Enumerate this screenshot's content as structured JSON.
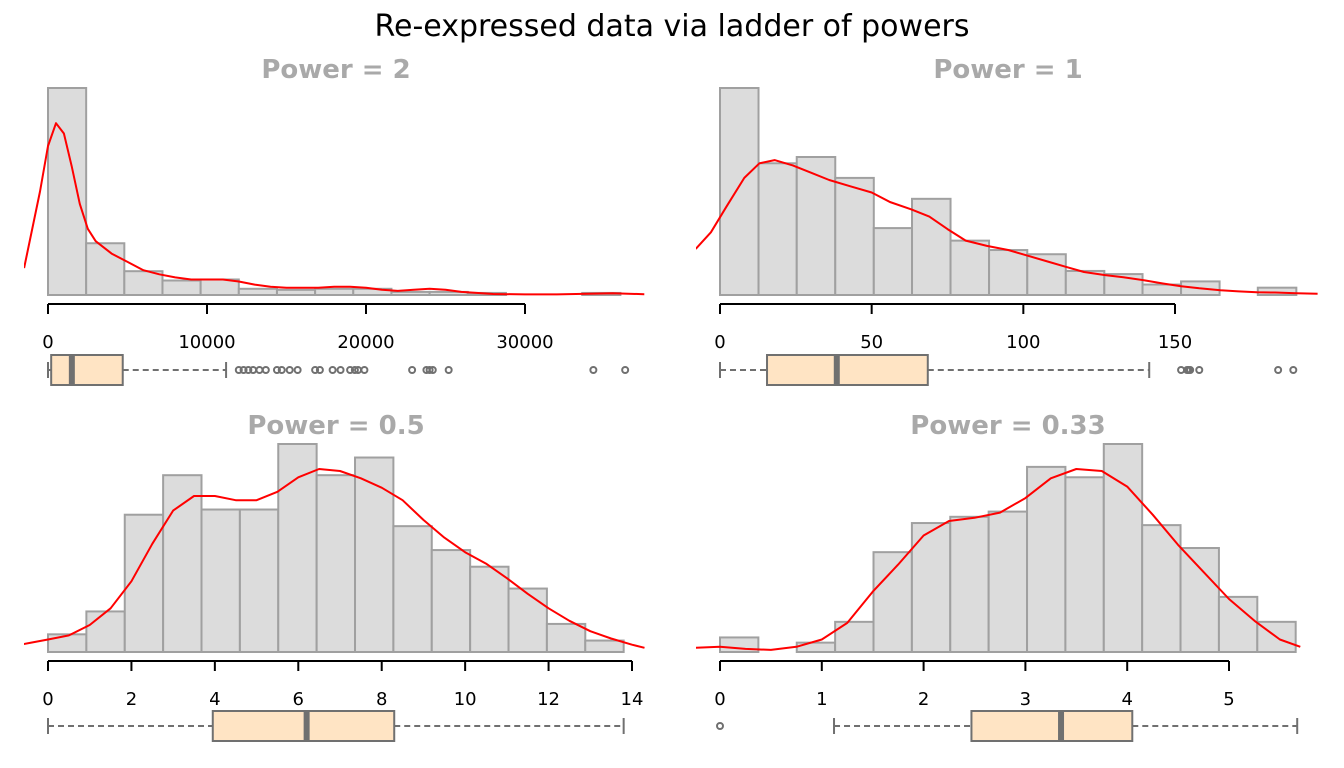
{
  "title": "Re-expressed data via ladder of powers",
  "colors": {
    "bar_fill": "#dcdcdc",
    "bar_stroke": "#a0a0a0",
    "density": "#ff0000",
    "box_fill": "#ffe4c4",
    "box_stroke": "#707070",
    "panel_title": "#a9a9a9",
    "axis": "#000000"
  },
  "chart_data": [
    {
      "type": "histogram",
      "title": "Power =  2",
      "power": 2,
      "xlim": [
        0,
        37000
      ],
      "xticks": [
        0,
        10000,
        20000,
        30000
      ],
      "xtick_labels": [
        "0",
        "10000",
        "20000",
        "30000"
      ],
      "bin_edges": [
        0,
        2400,
        4800,
        7200,
        9600,
        12000,
        14400,
        16800,
        19200,
        21600,
        24000,
        26400,
        28800,
        31200,
        33600,
        36000
      ],
      "heights": [
        100,
        25,
        11.5,
        7,
        7.5,
        3,
        2.5,
        3,
        3,
        1.5,
        1.5,
        1,
        0,
        0,
        1
      ],
      "density": [
        [
          -1500,
          13
        ],
        [
          -500,
          50
        ],
        [
          0,
          72
        ],
        [
          500,
          83
        ],
        [
          1000,
          78
        ],
        [
          1500,
          62
        ],
        [
          2000,
          44
        ],
        [
          2500,
          32
        ],
        [
          3000,
          26
        ],
        [
          4000,
          20
        ],
        [
          5000,
          16
        ],
        [
          6000,
          12
        ],
        [
          7000,
          10
        ],
        [
          8000,
          8.5
        ],
        [
          9000,
          7.5
        ],
        [
          10000,
          7.5
        ],
        [
          11000,
          7.5
        ],
        [
          12000,
          6.5
        ],
        [
          13000,
          5
        ],
        [
          14000,
          4
        ],
        [
          15000,
          3.5
        ],
        [
          16000,
          3.5
        ],
        [
          17000,
          3.5
        ],
        [
          18000,
          4
        ],
        [
          19000,
          4
        ],
        [
          20000,
          3.5
        ],
        [
          21000,
          2.5
        ],
        [
          22000,
          2
        ],
        [
          23000,
          2.5
        ],
        [
          24000,
          3
        ],
        [
          25000,
          2.5
        ],
        [
          26000,
          1.5
        ],
        [
          28000,
          0.5
        ],
        [
          30000,
          0.3
        ],
        [
          32000,
          0.3
        ],
        [
          34000,
          0.6
        ],
        [
          35500,
          0.8
        ],
        [
          37500,
          0.4
        ]
      ],
      "boxplot": {
        "min": 0,
        "q1": 200,
        "median": 1500,
        "q3": 4700,
        "whisker_high": 11200,
        "outliers": [
          12000,
          12300,
          12600,
          12900,
          13300,
          13700,
          14400,
          14700,
          15200,
          15700,
          16800,
          17100,
          17900,
          18400,
          19000,
          19300,
          19500,
          19900,
          22900,
          23800,
          24000,
          24200,
          25200,
          34300,
          36300
        ]
      }
    },
    {
      "type": "histogram",
      "title": "Power =  1",
      "power": 1,
      "xlim": [
        0,
        190
      ],
      "xticks": [
        0,
        50,
        100,
        150
      ],
      "xtick_labels": [
        "0",
        "50",
        "100",
        "150"
      ],
      "bin_edges": [
        0,
        12.7,
        25.3,
        38,
        50.7,
        63.3,
        76,
        88.7,
        101.3,
        114,
        126.7,
        139.3,
        152,
        164.7,
        177.3,
        190
      ],
      "heights": [
        99,
        63,
        66,
        56,
        32,
        46,
        26,
        21.5,
        19.5,
        11.5,
        10,
        5,
        6.5,
        0,
        3.5
      ],
      "density": [
        [
          -8,
          22
        ],
        [
          -3,
          30
        ],
        [
          2,
          42
        ],
        [
          8,
          56
        ],
        [
          13,
          63
        ],
        [
          18,
          64.5
        ],
        [
          24,
          62
        ],
        [
          30,
          58.5
        ],
        [
          36,
          55
        ],
        [
          43,
          52
        ],
        [
          50,
          49
        ],
        [
          56,
          44.5
        ],
        [
          63,
          41
        ],
        [
          69,
          37.5
        ],
        [
          75,
          31.5
        ],
        [
          81,
          26
        ],
        [
          88,
          23.5
        ],
        [
          95,
          21.5
        ],
        [
          101,
          19
        ],
        [
          108,
          16
        ],
        [
          114,
          13.5
        ],
        [
          120,
          11
        ],
        [
          127,
          9.5
        ],
        [
          133,
          8.5
        ],
        [
          140,
          7
        ],
        [
          146,
          5.5
        ],
        [
          152,
          4.2
        ],
        [
          158,
          3.2
        ],
        [
          165,
          2.3
        ],
        [
          171,
          1.7
        ],
        [
          177,
          1.3
        ],
        [
          183,
          1.2
        ],
        [
          190,
          0.8
        ],
        [
          197,
          0.6
        ]
      ],
      "boxplot": {
        "min": 0,
        "q1": 15.5,
        "median": 38.5,
        "q3": 68.5,
        "whisker_high": 141.5,
        "outliers": [
          152,
          154,
          154.5,
          155,
          158,
          184,
          189
        ]
      }
    },
    {
      "type": "histogram",
      "title": "Power =  0.5",
      "power": 0.5,
      "xlim": [
        0,
        14
      ],
      "xticks": [
        0,
        2,
        4,
        6,
        8,
        10,
        12,
        14
      ],
      "xtick_labels": [
        "0",
        "2",
        "4",
        "6",
        "8",
        "10",
        "12",
        "14"
      ],
      "bin_edges": [
        0,
        0.92,
        1.84,
        2.76,
        3.68,
        4.6,
        5.52,
        6.44,
        7.36,
        8.28,
        9.2,
        10.12,
        11.04,
        11.96,
        12.88,
        13.8
      ],
      "heights": [
        8.5,
        19.5,
        66,
        85,
        68.5,
        68.5,
        100,
        85,
        93.5,
        60.5,
        49,
        41,
        30.5,
        13.5,
        5.5
      ],
      "density": [
        [
          -0.8,
          3
        ],
        [
          -0.4,
          4.5
        ],
        [
          0,
          6
        ],
        [
          0.5,
          8
        ],
        [
          1,
          13
        ],
        [
          1.5,
          21
        ],
        [
          2,
          34
        ],
        [
          2.5,
          52
        ],
        [
          3,
          68
        ],
        [
          3.5,
          75
        ],
        [
          4,
          75
        ],
        [
          4.5,
          73
        ],
        [
          5,
          73
        ],
        [
          5.5,
          77
        ],
        [
          6,
          84
        ],
        [
          6.5,
          88
        ],
        [
          7,
          87
        ],
        [
          7.5,
          83.5
        ],
        [
          8,
          79
        ],
        [
          8.5,
          73
        ],
        [
          9,
          63.5
        ],
        [
          9.5,
          55
        ],
        [
          10,
          48
        ],
        [
          10.5,
          42.5
        ],
        [
          11,
          35.5
        ],
        [
          11.5,
          28
        ],
        [
          12,
          21
        ],
        [
          12.5,
          15
        ],
        [
          13,
          10
        ],
        [
          13.5,
          6.5
        ],
        [
          14,
          3.5
        ],
        [
          14.3,
          2
        ]
      ],
      "boxplot": {
        "min": 0,
        "q1": 3.95,
        "median": 6.2,
        "q3": 8.3,
        "whisker_high": 13.8,
        "outliers": []
      }
    },
    {
      "type": "histogram",
      "title": "Power =  0.33",
      "power": 0.33,
      "xlim": [
        0,
        5.7
      ],
      "xticks": [
        0,
        1,
        2,
        3,
        4,
        5
      ],
      "xtick_labels": [
        "0",
        "1",
        "2",
        "3",
        "4",
        "5"
      ],
      "bin_edges": [
        0,
        0.377,
        0.754,
        1.131,
        1.508,
        1.885,
        2.262,
        2.639,
        3.016,
        3.393,
        3.77,
        4.147,
        4.524,
        4.901,
        5.278,
        5.655
      ],
      "heights": [
        7,
        0,
        4.5,
        14.5,
        48,
        62,
        65,
        67.5,
        89,
        84,
        100,
        61,
        50,
        26.5,
        14.5
      ],
      "density": [
        [
          -0.25,
          2
        ],
        [
          0,
          2.5
        ],
        [
          0.25,
          1.5
        ],
        [
          0.5,
          1
        ],
        [
          0.75,
          2.5
        ],
        [
          1,
          6
        ],
        [
          1.25,
          14
        ],
        [
          1.5,
          29
        ],
        [
          1.75,
          42
        ],
        [
          2,
          56
        ],
        [
          2.25,
          63
        ],
        [
          2.5,
          64.5
        ],
        [
          2.75,
          67
        ],
        [
          3,
          74
        ],
        [
          3.25,
          83.5
        ],
        [
          3.5,
          88
        ],
        [
          3.75,
          87
        ],
        [
          4,
          79.5
        ],
        [
          4.25,
          66
        ],
        [
          4.5,
          51.5
        ],
        [
          4.75,
          38.5
        ],
        [
          5,
          25.5
        ],
        [
          5.25,
          15
        ],
        [
          5.5,
          6
        ],
        [
          5.7,
          2.5
        ]
      ],
      "boxplot": {
        "min": 1.12,
        "q1": 2.47,
        "median": 3.35,
        "q3": 4.05,
        "whisker_high": 5.67,
        "outliers": [
          0
        ]
      }
    }
  ]
}
